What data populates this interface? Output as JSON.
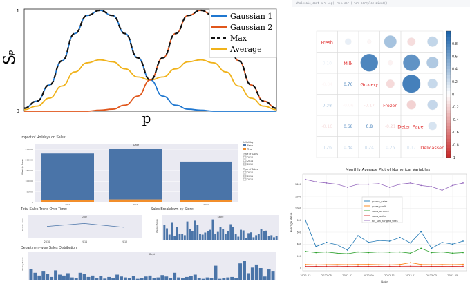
{
  "code_strip": "wholesale_cont %>% log() %>% cor() %>% corrplot.mixed()",
  "panels": {
    "gaussian": {
      "ylabel": "S",
      "ylabel_sub": "p",
      "xlabel": "p",
      "legend": [
        {
          "name": "Gaussian 1",
          "color": "#1f77d0"
        },
        {
          "name": "Gaussian 2",
          "color": "#e0561b"
        },
        {
          "name": "Max",
          "color": "#111111"
        },
        {
          "name": "Average",
          "color": "#f0b21a"
        }
      ],
      "yticks": [
        "0",
        "1"
      ]
    },
    "holidays": {
      "title": "Impact of Holidays on Sales:",
      "inner_title": "Date",
      "ylabel": "Weekly Sales",
      "yticks": [
        "0",
        "50000",
        "100000",
        "150000",
        "200000",
        "250000"
      ],
      "categories": [
        "2010",
        "2011",
        "2012"
      ],
      "legend1_title": "IsHoliday",
      "legend1": [
        "False",
        "True"
      ],
      "legend2_title": "Type of Sales",
      "legend2": [
        "2010",
        "2011",
        "2012"
      ],
      "legend3_title": "Type of Sales",
      "legend3": [
        "2010",
        "2011",
        "2012"
      ]
    },
    "trend": {
      "title": "Total Sales Trend Over Time:",
      "inner_title": "Date",
      "ylabel": "Weekly Sales",
      "xticks": [
        "2010",
        "2011",
        "2012"
      ]
    },
    "store": {
      "title": "Sales Breakdown by Store:",
      "inner_title": "Store",
      "ylabel": "Weekly Sales"
    },
    "dept": {
      "title": "Department-wise Sales Distribution:",
      "inner_title": "Dept",
      "ylabel": "Weekly Sales"
    },
    "corr": {
      "labels": [
        "Fresh",
        "Milk",
        "Grocery",
        "Frozen",
        "Deter_Paper",
        "Delicassen"
      ],
      "lower": [
        [
          "",
          "",
          "",
          "",
          "",
          ""
        ],
        [
          "0.10",
          "",
          "",
          "",
          "",
          ""
        ],
        [
          "-0.04",
          "0.76",
          "",
          "",
          "",
          ""
        ],
        [
          "0.38",
          "-0.06",
          "-0.17",
          "",
          "",
          ""
        ],
        [
          "-0.16",
          "0.68",
          "0.8",
          "-0.21",
          "",
          ""
        ],
        [
          "0.26",
          "0.34",
          "0.24",
          "0.25",
          "0.17",
          ""
        ]
      ],
      "colorbar_ticks": [
        "1",
        "0.8",
        "0.6",
        "0.4",
        "0.2",
        "0",
        "-0.2",
        "-0.4",
        "-0.6",
        "-0.8",
        "-1"
      ]
    },
    "monthly": {
      "title": "Monthly Average Plot of Numerical Variables",
      "xlabel": "Date",
      "ylabel": "Average Value",
      "yticks": [
        "0",
        "200",
        "400",
        "600",
        "800",
        "1000",
        "1200",
        "1400"
      ],
      "xticks": [
        "2022-03",
        "2022-05",
        "2022-07",
        "2022-09",
        "2022-11",
        "2023-01",
        "2023-03",
        "2023-05"
      ],
      "legend": [
        {
          "name": "promo_sales",
          "color": "#1f77b4"
        },
        {
          "name": "gross_profit",
          "color": "#ff7f0e"
        },
        {
          "name": "sales_amount",
          "color": "#2ca02c"
        },
        {
          "name": "sales_units",
          "color": "#d62728"
        },
        {
          "name": "tot_sch_ranged_sites",
          "color": "#9467bd"
        }
      ]
    }
  },
  "chart_data": [
    {
      "type": "line",
      "title": "",
      "xlabel": "p",
      "ylabel": "S_p",
      "ylim": [
        0,
        1
      ],
      "x": [
        0,
        0.05,
        0.1,
        0.15,
        0.2,
        0.25,
        0.3,
        0.35,
        0.4,
        0.45,
        0.5,
        0.55,
        0.6,
        0.65,
        0.7,
        0.75,
        0.8,
        0.85,
        0.9,
        0.95,
        1.0
      ],
      "series": [
        {
          "name": "Gaussian 1",
          "values": [
            0.03,
            0.1,
            0.26,
            0.5,
            0.77,
            0.95,
            1.0,
            0.95,
            0.77,
            0.53,
            0.31,
            0.15,
            0.06,
            0.02,
            0.01,
            0,
            0,
            0,
            0,
            0,
            0
          ]
        },
        {
          "name": "Gaussian 2",
          "values": [
            0,
            0,
            0,
            0,
            0,
            0,
            0.01,
            0.02,
            0.06,
            0.15,
            0.31,
            0.53,
            0.77,
            0.95,
            1.0,
            0.95,
            0.77,
            0.5,
            0.26,
            0.1,
            0.03
          ]
        },
        {
          "name": "Max",
          "values": [
            0.03,
            0.1,
            0.26,
            0.5,
            0.77,
            0.95,
            1.0,
            0.95,
            0.77,
            0.53,
            0.31,
            0.53,
            0.77,
            0.95,
            1.0,
            0.95,
            0.77,
            0.5,
            0.26,
            0.1,
            0.03
          ]
        },
        {
          "name": "Average",
          "values": [
            0.015,
            0.05,
            0.13,
            0.25,
            0.39,
            0.48,
            0.51,
            0.49,
            0.42,
            0.34,
            0.31,
            0.34,
            0.42,
            0.49,
            0.51,
            0.48,
            0.39,
            0.25,
            0.13,
            0.05,
            0.015
          ]
        }
      ]
    },
    {
      "type": "bar",
      "title": "Impact of Holidays on Sales:",
      "categories": [
        "2010",
        "2011",
        "2012"
      ],
      "series": [
        {
          "name": "False",
          "values": [
            218000,
            237000,
            182000
          ]
        },
        {
          "name": "True",
          "values": [
            12000,
            14000,
            10000
          ]
        }
      ],
      "ylim": [
        0,
        260000
      ]
    },
    {
      "type": "line",
      "title": "Total Sales Trend Over Time:",
      "x": [
        "2010",
        "2011",
        "2012"
      ],
      "series": [
        {
          "name": "Weekly Sales",
          "values": [
            22,
            28,
            20
          ]
        }
      ]
    },
    {
      "type": "bar",
      "title": "Sales Breakdown by Store:",
      "categories": [
        "1",
        "2",
        "3",
        "4",
        "5",
        "6",
        "7",
        "8",
        "9",
        "10",
        "11",
        "12",
        "13",
        "14",
        "15",
        "16",
        "17",
        "18",
        "19",
        "20",
        "21",
        "22",
        "23",
        "24",
        "25",
        "26",
        "27",
        "28",
        "29",
        "30",
        "31",
        "32",
        "33",
        "34",
        "35",
        "36",
        "37",
        "38",
        "39",
        "40",
        "41",
        "42",
        "43",
        "44",
        "45"
      ],
      "values": [
        70,
        55,
        25,
        85,
        20,
        60,
        30,
        28,
        22,
        88,
        50,
        40,
        92,
        72,
        30,
        25,
        35,
        40,
        48,
        98,
        30,
        38,
        60,
        52,
        28,
        40,
        75,
        62,
        28,
        15,
        48,
        45,
        10,
        32,
        36,
        12,
        22,
        30,
        50,
        42,
        44,
        18,
        22,
        12,
        20
      ]
    },
    {
      "type": "bar",
      "title": "Department-wise Sales Distribution:",
      "values": [
        45,
        30,
        18,
        38,
        25,
        12,
        40,
        22,
        18,
        28,
        10,
        8,
        30,
        24,
        12,
        18,
        8,
        15,
        5,
        12,
        8,
        22,
        14,
        10,
        6,
        16,
        4,
        8,
        14,
        18,
        6,
        10,
        20,
        14,
        8,
        30,
        10,
        6,
        12,
        16,
        22,
        8,
        4,
        10,
        6,
        60,
        4,
        8,
        10,
        12,
        6,
        70,
        80,
        28,
        52,
        65,
        50,
        14,
        44,
        38
      ]
    },
    {
      "type": "heatmap",
      "title": "",
      "categories": [
        "Fresh",
        "Milk",
        "Grocery",
        "Frozen",
        "Deter_Paper",
        "Delicassen"
      ],
      "values": [
        [
          1,
          0.1,
          -0.04,
          0.38,
          -0.16,
          0.26
        ],
        [
          0.1,
          1,
          0.76,
          -0.06,
          0.68,
          0.34
        ],
        [
          -0.04,
          0.76,
          1,
          -0.17,
          0.8,
          0.24
        ],
        [
          0.38,
          -0.06,
          -0.17,
          1,
          -0.21,
          0.25
        ],
        [
          -0.16,
          0.68,
          0.8,
          -0.21,
          1,
          0.17
        ],
        [
          0.26,
          0.34,
          0.24,
          0.25,
          0.17,
          1
        ]
      ]
    },
    {
      "type": "line",
      "title": "Monthly Average Plot of Numerical Variables",
      "xlabel": "Date",
      "ylabel": "Average Value",
      "ylim": [
        0,
        1500
      ],
      "x": [
        "2022-03",
        "2022-04",
        "2022-05",
        "2022-06",
        "2022-07",
        "2022-08",
        "2022-09",
        "2022-10",
        "2022-11",
        "2022-12",
        "2023-01",
        "2023-02",
        "2023-03",
        "2023-04",
        "2023-05",
        "2023-06"
      ],
      "series": [
        {
          "name": "promo_sales",
          "values": [
            800,
            360,
            430,
            390,
            300,
            540,
            430,
            460,
            450,
            510,
            420,
            610,
            330,
            430,
            400,
            450
          ]
        },
        {
          "name": "gross_profit",
          "values": [
            60,
            55,
            58,
            60,
            58,
            60,
            62,
            58,
            55,
            60,
            90,
            60,
            58,
            60,
            58,
            62
          ]
        },
        {
          "name": "sales_amount",
          "values": [
            280,
            260,
            270,
            250,
            240,
            270,
            260,
            270,
            265,
            270,
            250,
            330,
            260,
            270,
            250,
            260
          ]
        },
        {
          "name": "sales_units",
          "values": [
            30,
            28,
            30,
            32,
            28,
            30,
            28,
            30,
            28,
            30,
            32,
            30,
            28,
            30,
            28,
            30
          ]
        },
        {
          "name": "tot_sch_ranged_sites",
          "values": [
            1480,
            1440,
            1420,
            1400,
            1350,
            1400,
            1400,
            1410,
            1350,
            1400,
            1420,
            1380,
            1360,
            1300,
            1380,
            1420
          ]
        }
      ]
    }
  ]
}
